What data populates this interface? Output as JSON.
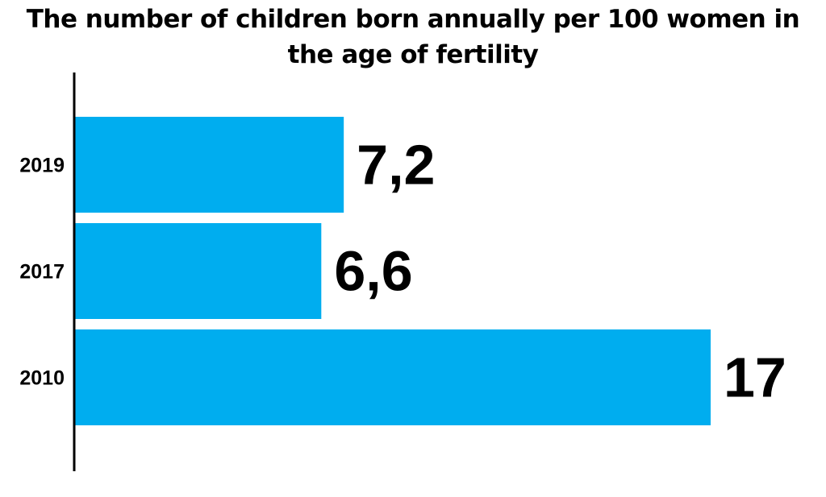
{
  "chart_data": {
    "type": "bar",
    "orientation": "horizontal",
    "title": "The number of children born annually per 100 women in the age of fertility",
    "categories": [
      "2019",
      "2017",
      "2010"
    ],
    "values": [
      7.2,
      6.6,
      17
    ],
    "data_labels": [
      "7,2",
      "6,6",
      "17"
    ],
    "xlim": [
      0,
      17
    ],
    "grid": false,
    "legend": "none",
    "bar_color": "#00adef",
    "axis_color": "#000000"
  }
}
